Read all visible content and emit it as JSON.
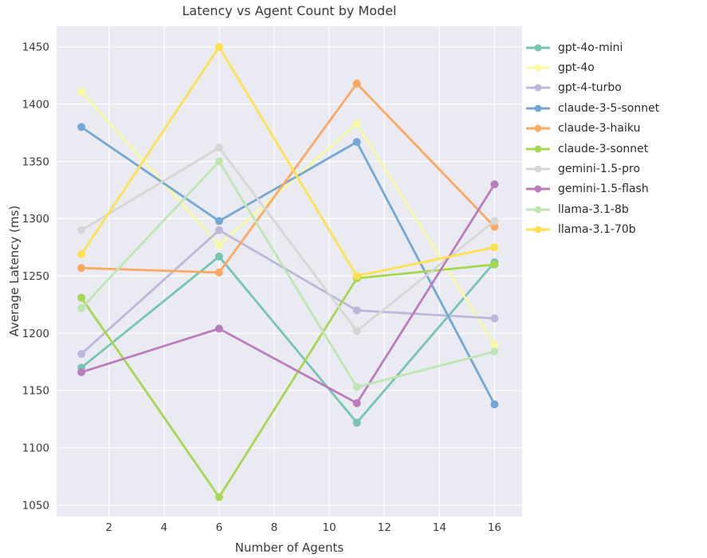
{
  "title": "Latency vs Agent Count by Model",
  "chart_data": {
    "type": "line",
    "title": "Latency vs Agent Count by Model",
    "xlabel": "Number of Agents",
    "ylabel": "Average Latency (ms)",
    "x": [
      1,
      6,
      11,
      16
    ],
    "xticks": [
      2,
      4,
      6,
      8,
      10,
      12,
      14,
      16
    ],
    "yticks": [
      1050,
      1100,
      1150,
      1200,
      1250,
      1300,
      1350,
      1400,
      1450
    ],
    "xlim": [
      0.1,
      17.0
    ],
    "ylim": [
      1040,
      1468
    ],
    "grid": true,
    "legend_position": "right",
    "plot_bg_color": "#eaeaf2",
    "grid_color": "#ffffff",
    "tick_label_color": "#3a3a3a",
    "series": [
      {
        "name": "gpt-4o-mini",
        "color": "#76c5b2",
        "values": [
          1170,
          1267,
          1122,
          1262
        ]
      },
      {
        "name": "gpt-4o",
        "color": "#f9f9a4",
        "values": [
          1411,
          1277,
          1383,
          1190
        ]
      },
      {
        "name": "gpt-4-turbo",
        "color": "#bcb8d9",
        "values": [
          1182,
          1290,
          1220,
          1213
        ]
      },
      {
        "name": "claude-3-5-sonnet",
        "color": "#74a8d4",
        "values": [
          1380,
          1298,
          1367,
          1138
        ]
      },
      {
        "name": "claude-3-haiku",
        "color": "#fca95f",
        "values": [
          1257,
          1253,
          1418,
          1293
        ]
      },
      {
        "name": "claude-3-sonnet",
        "color": "#a6d74f",
        "values": [
          1231,
          1057,
          1248,
          1260
        ]
      },
      {
        "name": "gemini-1.5-pro",
        "color": "#d6d6d6",
        "values": [
          1290,
          1362,
          1202,
          1298
        ]
      },
      {
        "name": "gemini-1.5-flash",
        "color": "#bb7cbd",
        "values": [
          1166,
          1204,
          1139,
          1330
        ]
      },
      {
        "name": "llama-3.1-8b",
        "color": "#bfe6b2",
        "values": [
          1222,
          1350,
          1153,
          1184
        ]
      },
      {
        "name": "llama-3.1-70b",
        "color": "#ffe14f",
        "values": [
          1269,
          1450,
          1250,
          1275
        ]
      }
    ]
  }
}
